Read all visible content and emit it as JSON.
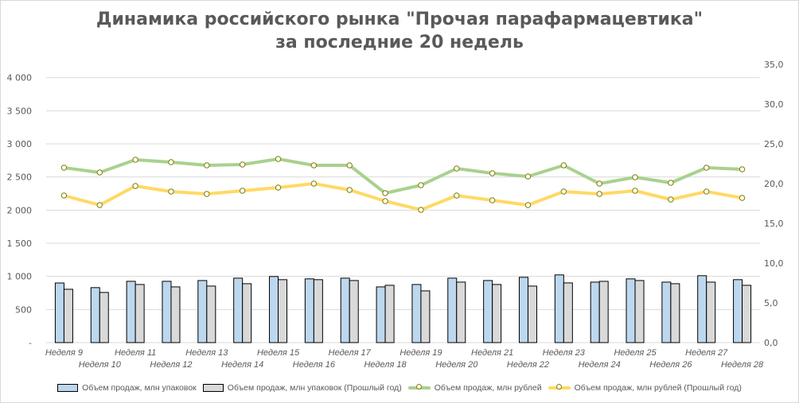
{
  "chart_data": {
    "type": "bar+line",
    "title_line1": "Динамика российского рынка \"Прочая парафармацевтика\"",
    "title_line2": "за последние 20 недель",
    "categories": [
      "Неделя 9",
      "Неделя 10",
      "Неделя 11",
      "Неделя 12",
      "Неделя 13",
      "Неделя 14",
      "Неделя 15",
      "Неделя 16",
      "Неделя 17",
      "Неделя 18",
      "Неделя 19",
      "Неделя 20",
      "Неделя 21",
      "Неделя 22",
      "Неделя 23",
      "Неделя 24",
      "Неделя 25",
      "Неделя 26",
      "Неделя 27",
      "Неделя 28"
    ],
    "left_axis": {
      "range": [
        0,
        4200
      ],
      "ticks": [
        0,
        500,
        1000,
        1500,
        2000,
        2500,
        3000,
        3500,
        4000
      ],
      "tick_labels": [
        "-",
        "500",
        "1 000",
        "1 500",
        "2 000",
        "2 500",
        "3 000",
        "3 500",
        "4 000"
      ]
    },
    "right_axis": {
      "range": [
        0,
        35
      ],
      "ticks": [
        0,
        5,
        10,
        15,
        20,
        25,
        30,
        35
      ],
      "tick_labels": [
        "0,0",
        "5,0",
        "10,0",
        "15,0",
        "20,0",
        "25,0",
        "30,0",
        "35,0"
      ]
    },
    "grid": true,
    "legend_position": "bottom",
    "series": [
      {
        "name": "Объем продаж, млн упаковок",
        "type": "bar",
        "axis": "left",
        "color": "#bdd7ee",
        "values": [
          900,
          830,
          925,
          925,
          937,
          973,
          998,
          962,
          973,
          841,
          877,
          973,
          937,
          986,
          1022,
          913,
          962,
          913,
          1010,
          950
        ]
      },
      {
        "name": "Объем продаж, млн упаковок (Прошлый год)",
        "type": "bar",
        "axis": "left",
        "color": "#d9d9d9",
        "values": [
          805,
          757,
          877,
          841,
          853,
          889,
          950,
          950,
          937,
          865,
          781,
          913,
          877,
          853,
          901,
          925,
          937,
          889,
          913,
          865
        ]
      },
      {
        "name": "Объем продаж, млн рублей",
        "type": "line",
        "axis": "right",
        "color": "#a9d18e",
        "values": [
          22.0,
          21.4,
          23.0,
          22.7,
          22.3,
          22.4,
          23.1,
          22.3,
          22.3,
          18.8,
          19.8,
          21.9,
          21.3,
          20.9,
          22.3,
          20.0,
          20.8,
          20.1,
          22.0,
          21.8
        ]
      },
      {
        "name": "Объем продаж, млн рублей (Прошлый год)",
        "type": "line",
        "axis": "right",
        "color": "#ffd966",
        "values": [
          18.5,
          17.3,
          19.7,
          19.0,
          18.7,
          19.1,
          19.5,
          20.0,
          19.2,
          17.8,
          16.7,
          18.5,
          17.9,
          17.3,
          19.0,
          18.7,
          19.1,
          18.0,
          19.0,
          18.2
        ]
      }
    ]
  }
}
